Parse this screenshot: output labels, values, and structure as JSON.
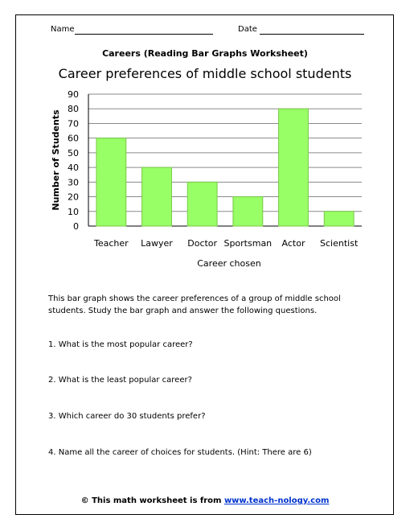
{
  "header": {
    "name_label": "Name",
    "date_label": "Date"
  },
  "worksheet_title": "Careers (Reading Bar Graphs Worksheet)",
  "chart_data": {
    "type": "bar",
    "title": "Career preferences of middle school students",
    "categories": [
      "Teacher",
      "Lawyer",
      "Doctor",
      "Sportsman",
      "Actor",
      "Scientist"
    ],
    "values": [
      60,
      40,
      30,
      20,
      80,
      10
    ],
    "xlabel": "Career chosen",
    "ylabel": "Number of Students",
    "ylim": [
      0,
      90
    ],
    "yticks": [
      "0",
      "10",
      "20",
      "30",
      "40",
      "50",
      "60",
      "70",
      "80",
      "90"
    ],
    "grid": true,
    "legend": "none",
    "bar_color": "#99ff66",
    "bar_edge_color": "#77c944"
  },
  "description": "This bar graph shows the career preferences of a group of middle school students. Study the bar graph and answer the following questions.",
  "questions": [
    "1. What is the most popular career?",
    "2. What is the least popular career?",
    "3. Which career do 30 students prefer?",
    "4. Name all the career of choices for students. (Hint: There are 6)"
  ],
  "footer": {
    "prefix": "© This math worksheet is from ",
    "link": "www.teach-nology.com"
  }
}
